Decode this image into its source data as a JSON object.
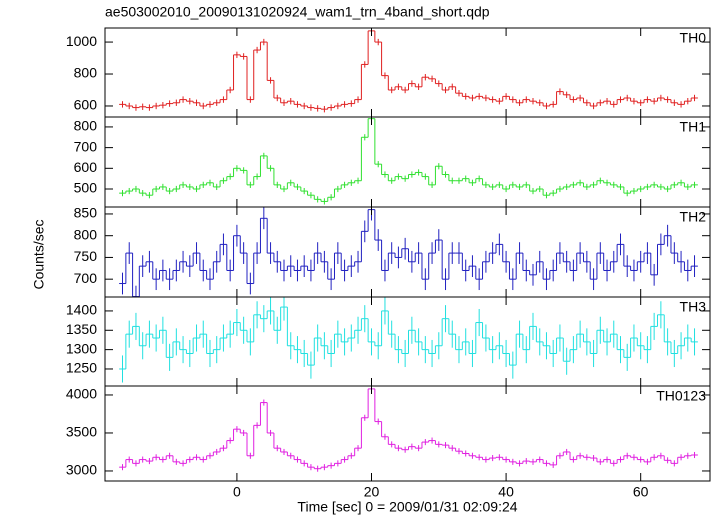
{
  "chart_data": [
    {
      "type": "line",
      "title": "ae503002010_20090131020924_wam1_trn_4band_short.qdp",
      "xlim": [
        -19.6,
        70.3
      ],
      "xticks": [
        0,
        20,
        40,
        60
      ],
      "ylim": [
        531,
        1088
      ],
      "yticks": [
        600,
        800,
        1000
      ],
      "x": [
        -17,
        -16,
        -15,
        -14,
        -13,
        -12,
        -11,
        -10,
        -9,
        -8,
        -7,
        -6,
        -5,
        -4,
        -3,
        -2,
        -1,
        0,
        1,
        2,
        3,
        4,
        5,
        6,
        7,
        8,
        9,
        10,
        11,
        12,
        13,
        14,
        15,
        16,
        17,
        18,
        19,
        20,
        21,
        22,
        23,
        24,
        25,
        26,
        27,
        28,
        29,
        30,
        31,
        32,
        33,
        34,
        35,
        36,
        37,
        38,
        39,
        40,
        41,
        42,
        43,
        44,
        45,
        46,
        47,
        48,
        49,
        50,
        51,
        52,
        53,
        54,
        55,
        56,
        57,
        58,
        59,
        60,
        61,
        62,
        63,
        64,
        65,
        66,
        67,
        68
      ],
      "series": [
        {
          "name": "TH0",
          "color": "#e02020",
          "yerr": 20,
          "values": [
            610,
            600,
            590,
            595,
            590,
            600,
            605,
            615,
            620,
            640,
            630,
            620,
            600,
            610,
            620,
            640,
            700,
            920,
            910,
            640,
            950,
            1000,
            760,
            650,
            620,
            630,
            610,
            600,
            590,
            585,
            580,
            590,
            600,
            610,
            615,
            640,
            860,
            1070,
            1000,
            790,
            700,
            720,
            700,
            740,
            720,
            780,
            770,
            740,
            700,
            720,
            680,
            660,
            650,
            660,
            650,
            640,
            630,
            660,
            640,
            620,
            640,
            630,
            620,
            600,
            610,
            690,
            670,
            640,
            650,
            620,
            600,
            620,
            630,
            610,
            640,
            650,
            630,
            620,
            640,
            630,
            650,
            640,
            620,
            610,
            630,
            650
          ]
        }
      ]
    },
    {
      "type": "line",
      "xlim": [
        -19.6,
        70.3
      ],
      "xticks": [
        0,
        20,
        40,
        60
      ],
      "ylim": [
        413,
        848
      ],
      "yticks": [
        500,
        600,
        700,
        800
      ],
      "x": [
        -17,
        -16,
        -15,
        -14,
        -13,
        -12,
        -11,
        -10,
        -9,
        -8,
        -7,
        -6,
        -5,
        -4,
        -3,
        -2,
        -1,
        0,
        1,
        2,
        3,
        4,
        5,
        6,
        7,
        8,
        9,
        10,
        11,
        12,
        13,
        14,
        15,
        16,
        17,
        18,
        19,
        20,
        21,
        22,
        23,
        24,
        25,
        26,
        27,
        28,
        29,
        30,
        31,
        32,
        33,
        34,
        35,
        36,
        37,
        38,
        39,
        40,
        41,
        42,
        43,
        44,
        45,
        46,
        47,
        48,
        49,
        50,
        51,
        52,
        53,
        54,
        55,
        56,
        57,
        58,
        59,
        60,
        61,
        62,
        63,
        64,
        65,
        66,
        67,
        68
      ],
      "series": [
        {
          "name": "TH1",
          "color": "#30e030",
          "yerr": 15,
          "values": [
            480,
            490,
            500,
            480,
            470,
            500,
            510,
            490,
            500,
            520,
            510,
            500,
            520,
            530,
            510,
            540,
            560,
            600,
            590,
            520,
            560,
            660,
            600,
            520,
            500,
            530,
            510,
            490,
            470,
            450,
            440,
            460,
            500,
            520,
            530,
            540,
            750,
            840,
            620,
            570,
            540,
            560,
            550,
            570,
            580,
            560,
            520,
            610,
            570,
            540,
            540,
            550,
            530,
            550,
            520,
            510,
            520,
            500,
            520,
            510,
            520,
            490,
            500,
            470,
            480,
            500,
            510,
            520,
            530,
            510,
            520,
            540,
            530,
            520,
            510,
            480,
            490,
            500,
            510,
            520,
            510,
            500,
            520,
            530,
            510,
            520
          ]
        }
      ]
    },
    {
      "type": "line",
      "ylabel": "Counts/sec",
      "xlim": [
        -19.6,
        70.3
      ],
      "xticks": [
        0,
        20,
        40,
        60
      ],
      "ylim": [
        659,
        866
      ],
      "yticks": [
        700,
        750,
        800,
        850
      ],
      "x": [
        -17,
        -16,
        -15,
        -14,
        -13,
        -12,
        -11,
        -10,
        -9,
        -8,
        -7,
        -6,
        -5,
        -4,
        -3,
        -2,
        -1,
        0,
        1,
        2,
        3,
        4,
        5,
        6,
        7,
        8,
        9,
        10,
        11,
        12,
        13,
        14,
        15,
        16,
        17,
        18,
        19,
        20,
        21,
        22,
        23,
        24,
        25,
        26,
        27,
        28,
        29,
        30,
        31,
        32,
        33,
        34,
        35,
        36,
        37,
        38,
        39,
        40,
        41,
        42,
        43,
        44,
        45,
        46,
        47,
        48,
        49,
        50,
        51,
        52,
        53,
        54,
        55,
        56,
        57,
        58,
        59,
        60,
        61,
        62,
        63,
        64,
        65,
        66,
        67,
        68
      ],
      "series": [
        {
          "name": "TH2",
          "color": "#2020c0",
          "yerr": 25,
          "values": [
            690,
            760,
            660,
            730,
            740,
            700,
            720,
            700,
            720,
            740,
            730,
            760,
            720,
            700,
            740,
            780,
            720,
            800,
            760,
            690,
            760,
            840,
            760,
            740,
            720,
            730,
            720,
            730,
            720,
            760,
            740,
            700,
            760,
            720,
            730,
            740,
            810,
            860,
            790,
            720,
            760,
            750,
            770,
            740,
            760,
            700,
            760,
            790,
            700,
            760,
            760,
            720,
            730,
            700,
            740,
            760,
            780,
            740,
            700,
            760,
            720,
            710,
            740,
            700,
            720,
            760,
            740,
            720,
            760,
            740,
            700,
            760,
            720,
            740,
            780,
            730,
            720,
            740,
            760,
            710,
            780,
            800,
            760,
            740,
            720,
            730
          ]
        }
      ]
    },
    {
      "type": "line",
      "xlim": [
        -19.6,
        70.3
      ],
      "xticks": [
        0,
        20,
        40,
        60
      ],
      "ylim": [
        1206,
        1436
      ],
      "yticks": [
        1250,
        1300,
        1350,
        1400
      ],
      "x": [
        -17,
        -16,
        -15,
        -14,
        -13,
        -12,
        -11,
        -10,
        -9,
        -8,
        -7,
        -6,
        -5,
        -4,
        -3,
        -2,
        -1,
        0,
        1,
        2,
        3,
        4,
        5,
        6,
        7,
        8,
        9,
        10,
        11,
        12,
        13,
        14,
        15,
        16,
        17,
        18,
        19,
        20,
        21,
        22,
        23,
        24,
        25,
        26,
        27,
        28,
        29,
        30,
        31,
        32,
        33,
        34,
        35,
        36,
        37,
        38,
        39,
        40,
        41,
        42,
        43,
        44,
        45,
        46,
        47,
        48,
        49,
        50,
        51,
        52,
        53,
        54,
        55,
        56,
        57,
        58,
        59,
        60,
        61,
        62,
        63,
        64,
        65,
        66,
        67,
        68
      ],
      "series": [
        {
          "name": "TH3",
          "color": "#20e0e0",
          "yerr": 35,
          "values": [
            1250,
            1340,
            1360,
            1310,
            1340,
            1330,
            1350,
            1280,
            1320,
            1300,
            1290,
            1330,
            1340,
            1290,
            1300,
            1330,
            1340,
            1370,
            1350,
            1320,
            1390,
            1380,
            1400,
            1350,
            1410,
            1310,
            1300,
            1290,
            1260,
            1330,
            1310,
            1290,
            1340,
            1320,
            1330,
            1350,
            1380,
            1320,
            1310,
            1400,
            1340,
            1300,
            1290,
            1350,
            1320,
            1300,
            1290,
            1310,
            1380,
            1340,
            1300,
            1320,
            1290,
            1370,
            1330,
            1300,
            1310,
            1290,
            1260,
            1340,
            1300,
            1360,
            1320,
            1310,
            1290,
            1330,
            1270,
            1300,
            1340,
            1320,
            1290,
            1350,
            1320,
            1340,
            1300,
            1280,
            1330,
            1310,
            1300,
            1360,
            1390,
            1320,
            1290,
            1310,
            1330,
            1320
          ]
        }
      ]
    },
    {
      "type": "line",
      "xlabel": "Time [sec] 0 = 2009/01/31 02:09:24",
      "xlim": [
        -19.6,
        70.3
      ],
      "xticks": [
        0,
        20,
        40,
        60
      ],
      "ylim": [
        2868,
        4118
      ],
      "yticks": [
        3000,
        3500,
        4000
      ],
      "x": [
        -17,
        -16,
        -15,
        -14,
        -13,
        -12,
        -11,
        -10,
        -9,
        -8,
        -7,
        -6,
        -5,
        -4,
        -3,
        -2,
        -1,
        0,
        1,
        2,
        3,
        4,
        5,
        6,
        7,
        8,
        9,
        10,
        11,
        12,
        13,
        14,
        15,
        16,
        17,
        18,
        19,
        20,
        21,
        22,
        23,
        24,
        25,
        26,
        27,
        28,
        29,
        30,
        31,
        32,
        33,
        34,
        35,
        36,
        37,
        38,
        39,
        40,
        41,
        42,
        43,
        44,
        45,
        46,
        47,
        48,
        49,
        50,
        51,
        52,
        53,
        54,
        55,
        56,
        57,
        58,
        59,
        60,
        61,
        62,
        63,
        64,
        65,
        66,
        67,
        68
      ],
      "series": [
        {
          "name": "TH0123",
          "color": "#e020e0",
          "yerr": 40,
          "values": [
            3050,
            3150,
            3100,
            3150,
            3130,
            3180,
            3150,
            3200,
            3120,
            3100,
            3150,
            3180,
            3150,
            3200,
            3250,
            3300,
            3400,
            3550,
            3500,
            3200,
            3600,
            3900,
            3500,
            3300,
            3250,
            3200,
            3150,
            3100,
            3050,
            3030,
            3050,
            3070,
            3100,
            3150,
            3200,
            3300,
            3700,
            4080,
            3650,
            3450,
            3350,
            3300,
            3280,
            3320,
            3300,
            3380,
            3400,
            3350,
            3340,
            3300,
            3260,
            3230,
            3200,
            3180,
            3150,
            3170,
            3180,
            3150,
            3120,
            3100,
            3130,
            3120,
            3150,
            3100,
            3080,
            3200,
            3250,
            3150,
            3200,
            3180,
            3170,
            3120,
            3150,
            3100,
            3150,
            3200,
            3180,
            3150,
            3120,
            3180,
            3200,
            3140,
            3100,
            3180,
            3200,
            3210
          ]
        }
      ]
    }
  ]
}
